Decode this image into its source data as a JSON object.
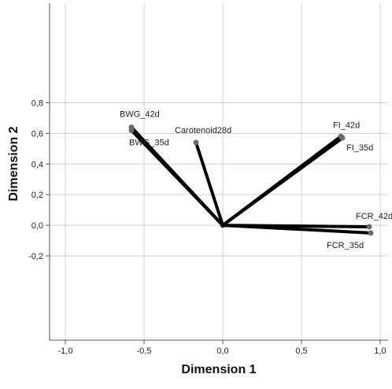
{
  "chart_data": {
    "type": "biplot",
    "xlabel": "Dimension 1",
    "ylabel": "Dimension 2",
    "xlim": [
      -1.1,
      1.05
    ],
    "ylim": [
      -0.75,
      1.45
    ],
    "x_ticks": [
      {
        "value": -1.0,
        "label": "-1,0"
      },
      {
        "value": -0.5,
        "label": "-0,5"
      },
      {
        "value": 0.0,
        "label": "0,0"
      },
      {
        "value": 0.5,
        "label": "0,5"
      },
      {
        "value": 1.0,
        "label": "1,0"
      }
    ],
    "y_ticks": [
      {
        "value": -0.2,
        "label": "-0,2"
      },
      {
        "value": 0.0,
        "label": "0,0"
      },
      {
        "value": 0.2,
        "label": "0,2"
      },
      {
        "value": 0.4,
        "label": "0,4"
      },
      {
        "value": 0.6,
        "label": "0,6"
      },
      {
        "value": 0.8,
        "label": "0,8"
      }
    ],
    "grid": true,
    "vectors": [
      {
        "label": "BWG_42d",
        "x": -0.58,
        "y": 0.64
      },
      {
        "label": "BWG_35d",
        "x": -0.58,
        "y": 0.62
      },
      {
        "label": "Carotenoid28d",
        "x": -0.17,
        "y": 0.54
      },
      {
        "label": "FI_42d",
        "x": 0.75,
        "y": 0.58
      },
      {
        "label": "FI_35d",
        "x": 0.76,
        "y": 0.57
      },
      {
        "label": "FCR_42d",
        "x": 0.93,
        "y": -0.01
      },
      {
        "label": "FCR_35d",
        "x": 0.94,
        "y": -0.05
      }
    ],
    "colors": {
      "vector": "#000000",
      "point": "#6b6b6b",
      "grid": "#cfcfcf",
      "axis": "#555555"
    }
  }
}
